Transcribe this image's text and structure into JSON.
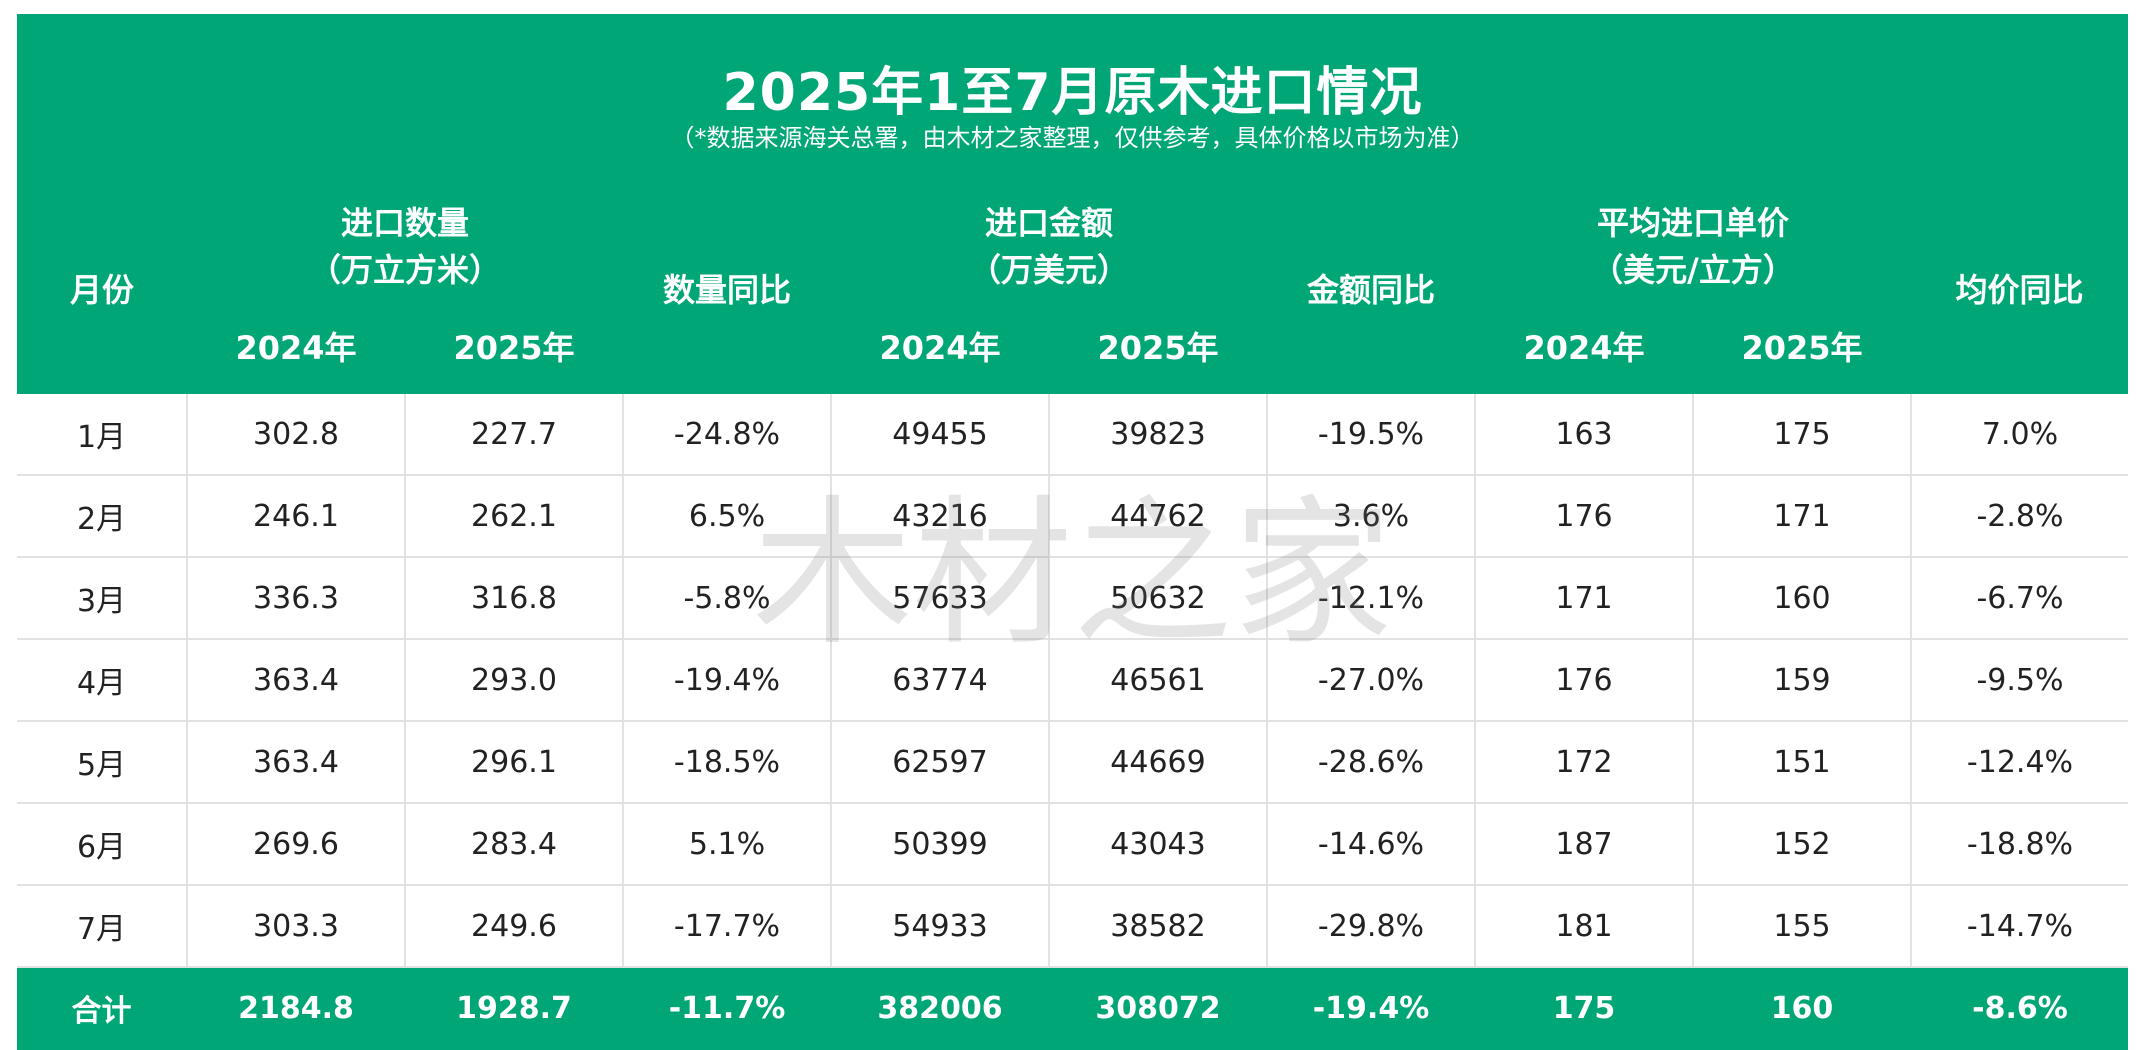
{
  "title": "2025年1至7月原木进口情况",
  "subtitle": "（*数据来源海关总署，由木材之家整理，仅供参考，具体价格以市场为准）",
  "watermark": "木材之家",
  "colors": {
    "header_bg": "#00a676",
    "negative": "#12a070",
    "positive": "#e8141b"
  },
  "headers": {
    "month": "月份",
    "qty_group": "进口数量",
    "qty_unit": "（万立方米）",
    "qty_yoy": "数量同比",
    "amt_group": "进口金额",
    "amt_unit": "（万美元）",
    "amt_yoy": "金额同比",
    "price_group": "平均进口单价",
    "price_unit": "（美元/立方）",
    "price_yoy": "均价同比",
    "y2024": "2024年",
    "y2025": "2025年"
  },
  "rows": [
    {
      "month": "1月",
      "qty24": "302.8",
      "qty25": "227.7",
      "qty_yoy": "-24.8%",
      "amt24": "49455",
      "amt25": "39823",
      "amt_yoy": "-19.5%",
      "p24": "163",
      "p25": "175",
      "p_yoy": "7.0%"
    },
    {
      "month": "2月",
      "qty24": "246.1",
      "qty25": "262.1",
      "qty_yoy": "6.5%",
      "amt24": "43216",
      "amt25": "44762",
      "amt_yoy": "3.6%",
      "p24": "176",
      "p25": "171",
      "p_yoy": "-2.8%"
    },
    {
      "month": "3月",
      "qty24": "336.3",
      "qty25": "316.8",
      "qty_yoy": "-5.8%",
      "amt24": "57633",
      "amt25": "50632",
      "amt_yoy": "-12.1%",
      "p24": "171",
      "p25": "160",
      "p_yoy": "-6.7%"
    },
    {
      "month": "4月",
      "qty24": "363.4",
      "qty25": "293.0",
      "qty_yoy": "-19.4%",
      "amt24": "63774",
      "amt25": "46561",
      "amt_yoy": "-27.0%",
      "p24": "176",
      "p25": "159",
      "p_yoy": "-9.5%"
    },
    {
      "month": "5月",
      "qty24": "363.4",
      "qty25": "296.1",
      "qty_yoy": "-18.5%",
      "amt24": "62597",
      "amt25": "44669",
      "amt_yoy": "-28.6%",
      "p24": "172",
      "p25": "151",
      "p_yoy": "-12.4%"
    },
    {
      "month": "6月",
      "qty24": "269.6",
      "qty25": "283.4",
      "qty_yoy": "5.1%",
      "amt24": "50399",
      "amt25": "43043",
      "amt_yoy": "-14.6%",
      "p24": "187",
      "p25": "152",
      "p_yoy": "-18.8%"
    },
    {
      "month": "7月",
      "qty24": "303.3",
      "qty25": "249.6",
      "qty_yoy": "-17.7%",
      "amt24": "54933",
      "amt25": "38582",
      "amt_yoy": "-29.8%",
      "p24": "181",
      "p25": "155",
      "p_yoy": "-14.7%"
    }
  ],
  "total": {
    "month": "合计",
    "qty24": "2184.8",
    "qty25": "1928.7",
    "qty_yoy": "-11.7%",
    "amt24": "382006",
    "amt25": "308072",
    "amt_yoy": "-19.4%",
    "p24": "175",
    "p25": "160",
    "p_yoy": "-8.6%"
  }
}
